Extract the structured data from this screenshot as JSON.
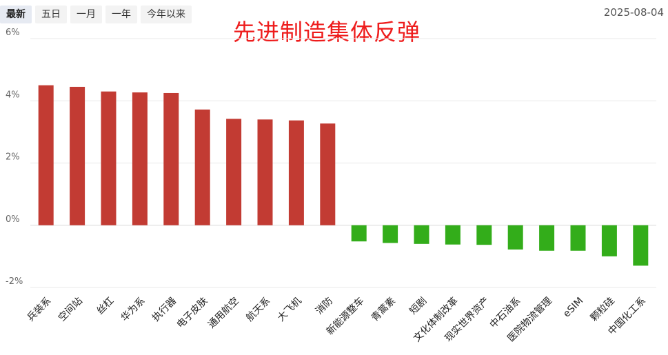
{
  "toolbar": {
    "tabs": [
      "最新",
      "五日",
      "一月",
      "一年",
      "今年以来"
    ],
    "active_tab": "最新",
    "date": "2025-08-04"
  },
  "headline": "先进制造集体反弹",
  "colors": {
    "positive": "#c23b33",
    "negative": "#33ad1a",
    "headline": "#ee1c1c"
  },
  "chart_data": {
    "type": "bar",
    "title": "",
    "xlabel": "",
    "ylabel": "",
    "ylim": [
      -2,
      6
    ],
    "yticks": [
      6,
      4,
      2,
      0,
      -2
    ],
    "ytick_labels": [
      "6%",
      "4%",
      "2%",
      "0%",
      "-2%"
    ],
    "grid": true,
    "categories": [
      "兵装系",
      "空间站",
      "丝杠",
      "华为系",
      "执行器",
      "电子皮肤",
      "通用航空",
      "航天系",
      "大飞机",
      "消防",
      "新能源整车",
      "青蒿素",
      "短剧",
      "文化体制改革",
      "现实世界资产",
      "中石油系",
      "医院物流管理",
      "eSIM",
      "颗粒硅",
      "中国化工系"
    ],
    "values": [
      4.5,
      4.45,
      4.3,
      4.27,
      4.25,
      3.72,
      3.42,
      3.4,
      3.37,
      3.27,
      -0.52,
      -0.57,
      -0.6,
      -0.62,
      -0.63,
      -0.78,
      -0.82,
      -0.82,
      -1.0,
      -1.3
    ]
  }
}
